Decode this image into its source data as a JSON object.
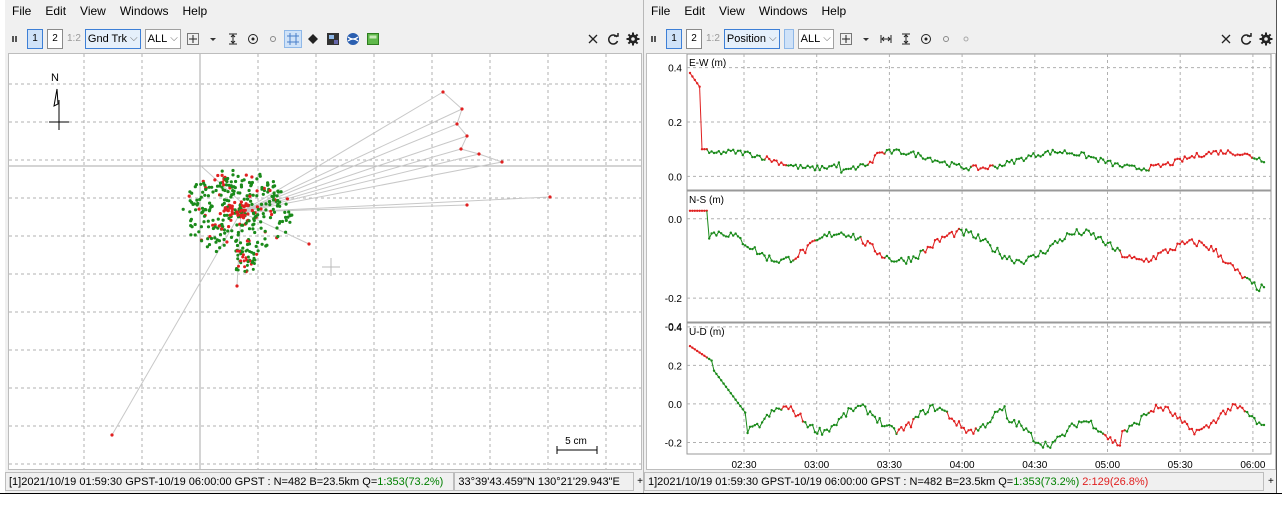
{
  "menu": [
    "File",
    "Edit",
    "View",
    "Windows",
    "Help"
  ],
  "left": {
    "toolbar": {
      "btn1": "1",
      "btn2": "2",
      "btn12": "1:2",
      "plot_type": "Gnd Trk",
      "sat_filter": "ALL"
    },
    "north_label": "N",
    "scale_label": "5 cm",
    "status": {
      "prefix": "[1]2021/10/19 01:59:30 GPST-10/19 06:00:00 GPST : N=482 B=23.5km Q=",
      "q1": "1:353(73.2%)",
      "coords": "33°39'43.459\"N  130°21'29.943\"E"
    }
  },
  "right": {
    "toolbar": {
      "btn1": "1",
      "btn2": "2",
      "btn12": "1:2",
      "plot_type": "Position",
      "sat_filter": "ALL"
    },
    "panels": [
      {
        "title": "E-W (m)",
        "ticks": [
          "0.4",
          "0.2",
          "0.0"
        ],
        "extra_tick": ""
      },
      {
        "title": "N-S (m)",
        "ticks": [
          "0.0",
          "-0.2"
        ],
        "extra_tick": "-0.4"
      },
      {
        "title": "U-D (m)",
        "ticks": [
          "0.4",
          "0.2",
          "0.0",
          "-0.2"
        ],
        "extra_tick": ""
      }
    ],
    "x_ticks": [
      "02:30",
      "03:00",
      "03:30",
      "04:00",
      "04:30",
      "05:00",
      "05:30",
      "06:00"
    ],
    "status": {
      "prefix": "1]2021/10/19 01:59:30 GPST-10/19 06:00:00 GPST : N=482 B=23.5km Q=",
      "q1": "1:353(73.2%)",
      "q2": "2:129(26.8%)"
    }
  },
  "colors": {
    "fix": "#1a8a1a",
    "float": "#e02020",
    "grid": "#b0b0b0",
    "track": "#c8c8c8"
  }
}
